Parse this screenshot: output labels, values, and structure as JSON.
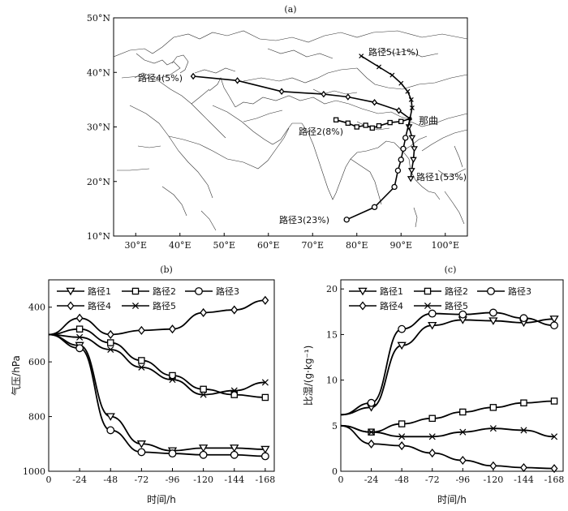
{
  "chart_data": [
    {
      "type": "map",
      "panel_label": "(a)",
      "lon_ticks": [
        "30°E",
        "40°E",
        "50°E",
        "60°E",
        "70°E",
        "80°E",
        "90°E",
        "100°E"
      ],
      "lat_ticks": [
        "50°N",
        "40°N",
        "30°N",
        "20°N",
        "10°N"
      ],
      "lon_range": [
        25,
        105
      ],
      "lat_range": [
        10,
        50
      ],
      "station": {
        "name": "那曲",
        "lon": 92.0,
        "lat": 31.5
      },
      "routes": [
        {
          "name": "路径1",
          "pct": "(53%)",
          "label": "路径1(53%)",
          "marker": "triangle",
          "points": [
            [
              92.0,
              31.5
            ],
            [
              91.8,
              30.0
            ],
            [
              92.5,
              28.0
            ],
            [
              93.0,
              26.0
            ],
            [
              92.8,
              24.0
            ],
            [
              92.4,
              22.0
            ],
            [
              92.2,
              20.5
            ]
          ]
        },
        {
          "name": "路径2",
          "pct": "(8%)",
          "label": "路径2(8%)",
          "marker": "square",
          "points": [
            [
              92.0,
              31.5
            ],
            [
              90.0,
              31.0
            ],
            [
              87.5,
              30.8
            ],
            [
              85.0,
              30.2
            ],
            [
              83.5,
              29.8
            ],
            [
              82.0,
              30.3
            ],
            [
              80.0,
              30.0
            ],
            [
              78.0,
              30.7
            ],
            [
              75.3,
              31.3
            ]
          ]
        },
        {
          "name": "路径3",
          "pct": "(23%)",
          "label": "路径3(23%)",
          "marker": "circle",
          "points": [
            [
              92.0,
              31.5
            ],
            [
              91.0,
              28.0
            ],
            [
              90.5,
              26.0
            ],
            [
              90.0,
              24.0
            ],
            [
              89.3,
              22.0
            ],
            [
              88.5,
              19.0
            ],
            [
              84.0,
              15.3
            ],
            [
              77.7,
              13.0
            ]
          ]
        },
        {
          "name": "路径4",
          "pct": "(5%)",
          "label": "路径4(5%)",
          "marker": "diamond",
          "points": [
            [
              92.0,
              31.5
            ],
            [
              89.5,
              33.0
            ],
            [
              84.0,
              34.5
            ],
            [
              78.0,
              35.5
            ],
            [
              72.5,
              36.0
            ],
            [
              63.0,
              36.5
            ],
            [
              53.0,
              38.5
            ],
            [
              43.0,
              39.3
            ]
          ]
        },
        {
          "name": "路径5",
          "pct": "(11%)",
          "label": "路径5(11%)",
          "marker": "x",
          "points": [
            [
              92.0,
              31.5
            ],
            [
              92.5,
              33.5
            ],
            [
              92.3,
              35.0
            ],
            [
              91.5,
              36.5
            ],
            [
              90.0,
              38.0
            ],
            [
              88.0,
              39.5
            ],
            [
              85.0,
              41.0
            ],
            [
              81.0,
              43.0
            ]
          ]
        }
      ]
    },
    {
      "type": "line",
      "panel_label": "(b)",
      "title": "",
      "xlabel": "时间/h",
      "ylabel": "气压/hPa",
      "x": [
        0,
        -24,
        -48,
        -72,
        -96,
        -120,
        -144,
        -168
      ],
      "x_tick_labels": [
        "0",
        "-24",
        "-48",
        "-72",
        "-96",
        "-120",
        "-144",
        "-168"
      ],
      "y_tick_labels": [
        "400",
        "600",
        "800",
        "1000"
      ],
      "xlim": [
        0,
        -175
      ],
      "ylim": [
        1000,
        300
      ],
      "y_inverted": true,
      "legend": [
        "路径1",
        "路径2",
        "路径3",
        "路径4",
        "路径5"
      ],
      "series": [
        {
          "name": "路径1",
          "marker": "triangle",
          "values": [
            500,
            540,
            800,
            900,
            925,
            915,
            915,
            920
          ]
        },
        {
          "name": "路径2",
          "marker": "square",
          "values": [
            500,
            480,
            530,
            595,
            650,
            700,
            720,
            730
          ]
        },
        {
          "name": "路径3",
          "marker": "circle",
          "values": [
            500,
            550,
            850,
            930,
            935,
            940,
            940,
            945
          ]
        },
        {
          "name": "路径4",
          "marker": "diamond",
          "values": [
            500,
            440,
            500,
            485,
            480,
            420,
            410,
            375
          ]
        },
        {
          "name": "路径5",
          "marker": "x",
          "values": [
            500,
            510,
            555,
            620,
            665,
            720,
            705,
            675
          ]
        }
      ]
    },
    {
      "type": "line",
      "panel_label": "(c)",
      "title": "",
      "xlabel": "时间/h",
      "ylabel": "比湿/(g·kg⁻¹)",
      "x": [
        0,
        -24,
        -48,
        -72,
        -96,
        -120,
        -144,
        -168
      ],
      "x_tick_labels": [
        "0",
        "-24",
        "-48",
        "-72",
        "-96",
        "-120",
        "-144",
        "-168"
      ],
      "y_tick_labels": [
        "0",
        "5",
        "10",
        "15",
        "20"
      ],
      "xlim": [
        0,
        -175
      ],
      "ylim": [
        0,
        21
      ],
      "legend": [
        "路径1",
        "路径2",
        "路径3",
        "路径4",
        "路径5"
      ],
      "series": [
        {
          "name": "路径1",
          "marker": "triangle",
          "values": [
            6.2,
            7.0,
            13.8,
            16.0,
            16.6,
            16.5,
            16.3,
            16.7
          ]
        },
        {
          "name": "路径2",
          "marker": "square",
          "values": [
            5.0,
            4.3,
            5.2,
            5.8,
            6.5,
            7.0,
            7.5,
            7.7
          ]
        },
        {
          "name": "路径3",
          "marker": "circle",
          "values": [
            6.2,
            7.5,
            15.6,
            17.3,
            17.2,
            17.4,
            16.8,
            16.0
          ]
        },
        {
          "name": "路径4",
          "marker": "diamond",
          "values": [
            5.0,
            3.0,
            2.8,
            2.0,
            1.2,
            0.6,
            0.4,
            0.3
          ]
        },
        {
          "name": "路径5",
          "marker": "x",
          "values": [
            5.0,
            4.3,
            3.8,
            3.8,
            4.3,
            4.7,
            4.5,
            3.8
          ]
        }
      ]
    }
  ]
}
